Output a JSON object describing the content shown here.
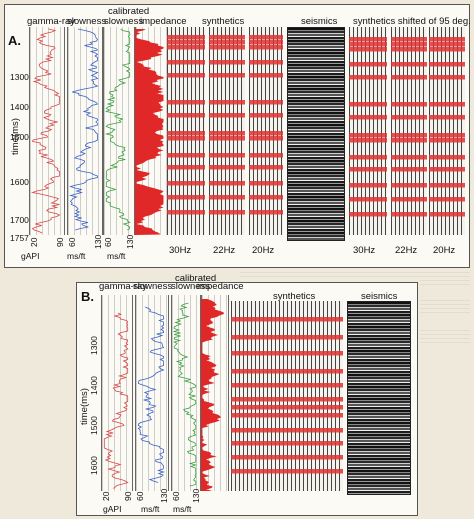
{
  "panel_a": {
    "letter": "A.",
    "headers": {
      "gamma_ray": "gamma-ray",
      "slowness": "slowness",
      "calibrated_slowness_top": "calibrated",
      "calibrated_slowness_bottom": "slowness",
      "impedance": "impedance",
      "synthetics": "synthetics",
      "seismics": "seismics",
      "synthetics_shifted": "synthetics shifted of 95 deg."
    },
    "time_axis_label": "time(ms)",
    "time_ticks": [
      "1300",
      "1400",
      "1500",
      "1600",
      "1700",
      "1757"
    ],
    "units": [
      "gAPI",
      "ms/ft",
      "ms/ft"
    ],
    "scale_ticks": [
      "20",
      "90",
      "60",
      "130",
      "60",
      "130"
    ],
    "freq_labels": [
      "30Hz",
      "22Hz",
      "20Hz",
      "30Hz",
      "22Hz",
      "20Hz"
    ]
  },
  "panel_b": {
    "letter": "B.",
    "headers": {
      "gamma_ray": "gamma-ray",
      "slowness": "slowness",
      "calibrated_slowness_top": "calibrated",
      "calibrated_slowness_bottom": "slowness",
      "impedance": "impedance",
      "synthetics": "synthetics",
      "seismics": "seismics"
    },
    "time_axis_label": "time(ms)",
    "time_ticks": [
      "1300",
      "1400",
      "1500",
      "1600"
    ],
    "units": [
      "gAPI",
      "ms/ft",
      "ms/ft"
    ],
    "scale_ticks": [
      "20",
      "90",
      "60",
      "130",
      "60",
      "130"
    ]
  },
  "colors": {
    "gamma_ray": "#d84848",
    "slowness": "#3a62c8",
    "calibrated_slowness": "#3aa040",
    "impedance": "#e02828",
    "synthetic_highlight": "#e03030"
  }
}
